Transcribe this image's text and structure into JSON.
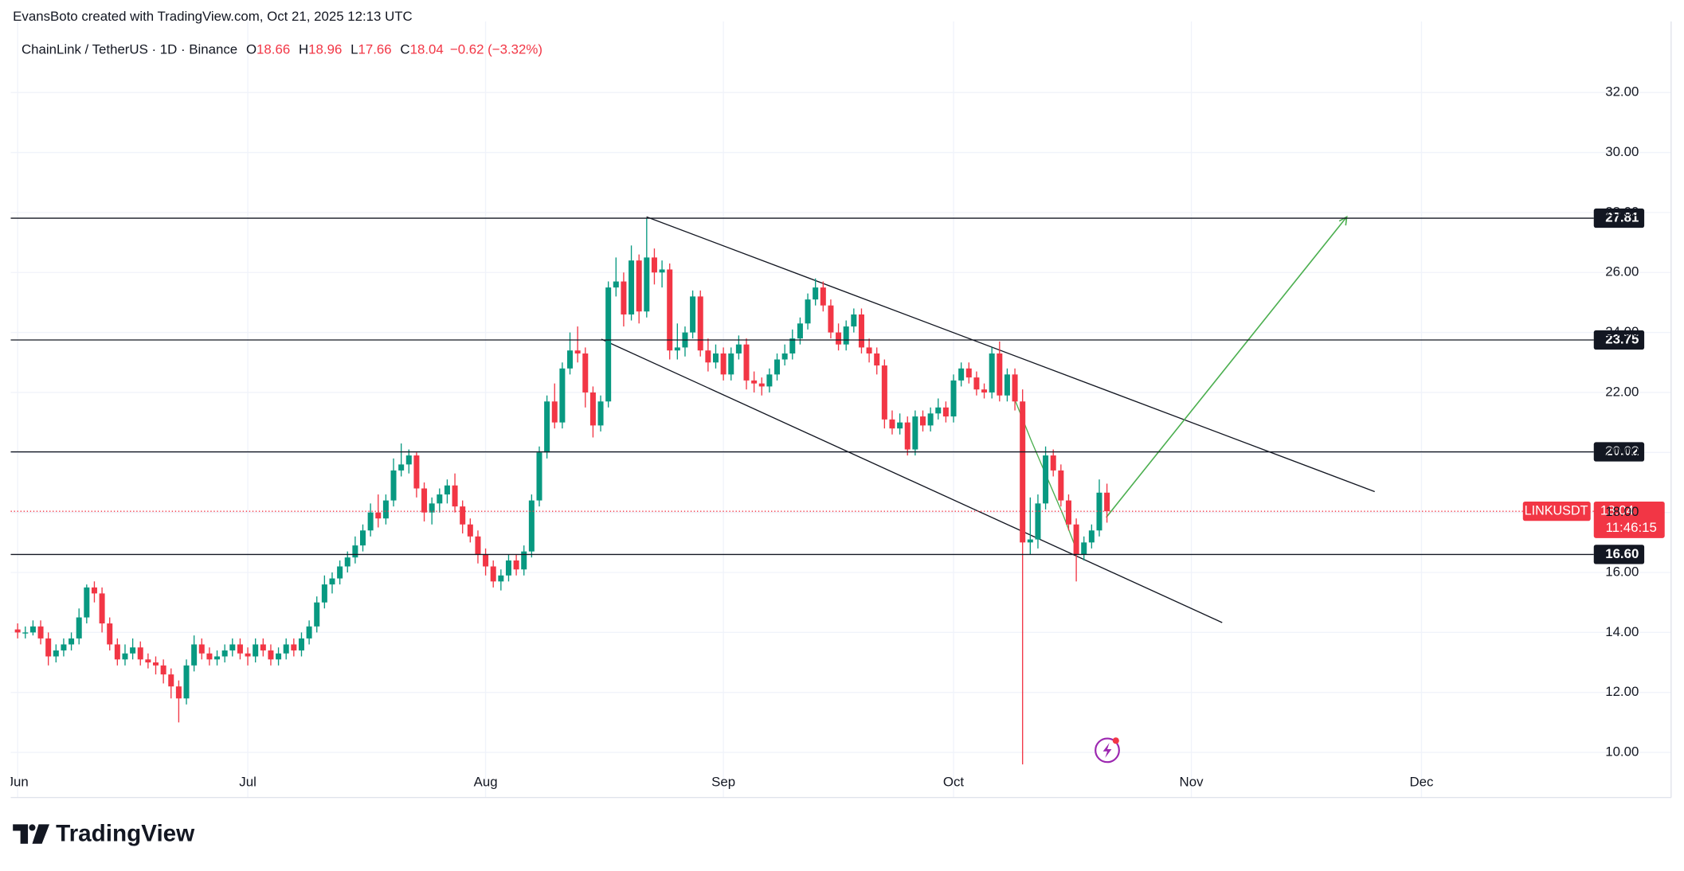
{
  "header": {
    "credit": "EvansBoto created with TradingView.com, Oct 21, 2025 12:13 UTC"
  },
  "chart_data": {
    "type": "candlestick",
    "title": "ChainLink / TetherUS · 1D · Binance",
    "ohlc_legend": [
      {
        "label": "O",
        "value": "18.66"
      },
      {
        "label": "H",
        "value": "18.96"
      },
      {
        "label": "L",
        "value": "17.66"
      },
      {
        "label": "C",
        "value": "18.04"
      }
    ],
    "change": "−0.62 (−3.32%)",
    "up_color": "#089981",
    "down_color": "#f23645",
    "candles": [
      [
        14.1,
        14.3,
        13.8,
        14.0
      ],
      [
        14.0,
        14.2,
        13.8,
        14.0
      ],
      [
        14.0,
        14.4,
        13.9,
        14.2
      ],
      [
        14.2,
        14.4,
        13.6,
        13.8
      ],
      [
        13.8,
        14.0,
        12.9,
        13.2
      ],
      [
        13.2,
        13.6,
        13.0,
        13.4
      ],
      [
        13.4,
        13.8,
        13.2,
        13.6
      ],
      [
        13.6,
        14.0,
        13.4,
        13.8
      ],
      [
        13.8,
        14.8,
        13.6,
        14.5
      ],
      [
        14.5,
        15.6,
        14.3,
        15.5
      ],
      [
        15.5,
        15.7,
        15.0,
        15.3
      ],
      [
        15.3,
        15.5,
        14.0,
        14.3
      ],
      [
        14.3,
        14.5,
        13.4,
        13.6
      ],
      [
        13.6,
        13.8,
        12.9,
        13.1
      ],
      [
        13.1,
        13.6,
        12.9,
        13.3
      ],
      [
        13.3,
        13.8,
        13.1,
        13.5
      ],
      [
        13.5,
        13.7,
        12.9,
        13.1
      ],
      [
        13.1,
        13.3,
        12.8,
        13.0
      ],
      [
        13.0,
        13.2,
        12.6,
        12.9
      ],
      [
        12.9,
        13.1,
        12.3,
        12.6
      ],
      [
        12.6,
        12.8,
        11.8,
        12.2
      ],
      [
        12.2,
        12.4,
        11.0,
        11.8
      ],
      [
        11.8,
        13.1,
        11.6,
        12.9
      ],
      [
        12.9,
        13.9,
        12.7,
        13.6
      ],
      [
        13.6,
        13.8,
        13.1,
        13.3
      ],
      [
        13.3,
        13.5,
        12.9,
        13.1
      ],
      [
        13.1,
        13.4,
        12.9,
        13.2
      ],
      [
        13.2,
        13.6,
        13.0,
        13.4
      ],
      [
        13.4,
        13.8,
        13.2,
        13.6
      ],
      [
        13.6,
        13.8,
        13.1,
        13.3
      ],
      [
        13.3,
        13.5,
        12.9,
        13.2
      ],
      [
        13.2,
        13.8,
        13.0,
        13.6
      ],
      [
        13.6,
        13.8,
        13.2,
        13.4
      ],
      [
        13.4,
        13.6,
        12.9,
        13.1
      ],
      [
        13.1,
        13.5,
        12.9,
        13.3
      ],
      [
        13.3,
        13.8,
        13.1,
        13.6
      ],
      [
        13.6,
        13.8,
        13.2,
        13.4
      ],
      [
        13.4,
        14.0,
        13.2,
        13.8
      ],
      [
        13.8,
        14.4,
        13.6,
        14.2
      ],
      [
        14.2,
        15.2,
        14.0,
        15.0
      ],
      [
        15.0,
        15.9,
        14.8,
        15.6
      ],
      [
        15.6,
        16.0,
        15.3,
        15.8
      ],
      [
        15.8,
        16.4,
        15.6,
        16.2
      ],
      [
        16.2,
        16.7,
        16.0,
        16.5
      ],
      [
        16.5,
        17.2,
        16.3,
        16.9
      ],
      [
        16.9,
        17.6,
        16.7,
        17.4
      ],
      [
        17.4,
        18.3,
        17.2,
        18.0
      ],
      [
        18.0,
        18.6,
        17.5,
        17.8
      ],
      [
        17.8,
        18.6,
        17.6,
        18.4
      ],
      [
        18.4,
        19.8,
        18.2,
        19.4
      ],
      [
        19.4,
        20.3,
        19.2,
        19.6
      ],
      [
        19.6,
        20.1,
        19.3,
        19.9
      ],
      [
        19.9,
        20.0,
        18.5,
        18.8
      ],
      [
        18.8,
        19.0,
        17.7,
        18.0
      ],
      [
        18.0,
        18.5,
        17.6,
        18.3
      ],
      [
        18.3,
        18.8,
        18.0,
        18.6
      ],
      [
        18.6,
        19.1,
        18.3,
        18.9
      ],
      [
        18.9,
        19.3,
        18.0,
        18.2
      ],
      [
        18.2,
        18.4,
        17.3,
        17.6
      ],
      [
        17.6,
        17.8,
        17.0,
        17.2
      ],
      [
        17.2,
        17.4,
        16.3,
        16.6
      ],
      [
        16.6,
        16.8,
        15.9,
        16.2
      ],
      [
        16.2,
        16.4,
        15.5,
        15.7
      ],
      [
        15.7,
        16.1,
        15.4,
        15.9
      ],
      [
        15.9,
        16.6,
        15.7,
        16.4
      ],
      [
        16.4,
        16.6,
        15.9,
        16.1
      ],
      [
        16.1,
        16.9,
        15.9,
        16.7
      ],
      [
        16.7,
        18.6,
        16.5,
        18.4
      ],
      [
        18.4,
        20.2,
        18.2,
        20.0
      ],
      [
        20.0,
        21.9,
        19.8,
        21.7
      ],
      [
        21.7,
        22.3,
        20.8,
        21.0
      ],
      [
        21.0,
        23.0,
        20.8,
        22.8
      ],
      [
        22.8,
        24.0,
        22.6,
        23.4
      ],
      [
        23.4,
        24.2,
        23.0,
        23.3
      ],
      [
        23.3,
        23.5,
        21.5,
        22.0
      ],
      [
        22.0,
        22.2,
        20.5,
        20.9
      ],
      [
        20.9,
        21.9,
        20.7,
        21.7
      ],
      [
        21.7,
        25.7,
        21.5,
        25.5
      ],
      [
        25.5,
        26.5,
        25.2,
        25.7
      ],
      [
        25.7,
        26.0,
        24.2,
        24.6
      ],
      [
        24.6,
        26.9,
        24.4,
        26.4
      ],
      [
        26.4,
        26.6,
        24.3,
        24.7
      ],
      [
        24.7,
        27.8,
        24.5,
        26.5
      ],
      [
        26.5,
        26.8,
        25.6,
        26.0
      ],
      [
        26.0,
        26.4,
        25.5,
        26.1
      ],
      [
        26.1,
        26.3,
        23.1,
        23.4
      ],
      [
        23.4,
        24.3,
        23.1,
        23.5
      ],
      [
        23.5,
        24.2,
        23.2,
        24.0
      ],
      [
        24.0,
        25.4,
        23.8,
        25.2
      ],
      [
        25.2,
        25.4,
        23.2,
        23.4
      ],
      [
        23.4,
        23.8,
        22.7,
        23.0
      ],
      [
        23.0,
        23.6,
        22.8,
        23.3
      ],
      [
        23.3,
        23.5,
        22.4,
        22.6
      ],
      [
        22.6,
        23.5,
        22.4,
        23.3
      ],
      [
        23.3,
        23.9,
        23.1,
        23.6
      ],
      [
        23.6,
        23.8,
        22.1,
        22.4
      ],
      [
        22.4,
        22.7,
        22.0,
        22.3
      ],
      [
        22.3,
        22.5,
        21.9,
        22.2
      ],
      [
        22.2,
        22.8,
        22.0,
        22.6
      ],
      [
        22.6,
        23.3,
        22.4,
        23.1
      ],
      [
        23.1,
        23.6,
        22.9,
        23.3
      ],
      [
        23.3,
        24.1,
        23.1,
        23.8
      ],
      [
        23.8,
        24.5,
        23.6,
        24.3
      ],
      [
        24.3,
        25.3,
        24.1,
        25.1
      ],
      [
        25.1,
        25.8,
        24.9,
        25.5
      ],
      [
        25.5,
        25.7,
        24.7,
        24.9
      ],
      [
        24.9,
        25.1,
        23.8,
        24.0
      ],
      [
        24.0,
        24.3,
        23.4,
        23.6
      ],
      [
        23.6,
        24.4,
        23.4,
        24.2
      ],
      [
        24.2,
        24.8,
        24.0,
        24.6
      ],
      [
        24.6,
        24.8,
        23.3,
        23.5
      ],
      [
        23.5,
        23.8,
        23.0,
        23.3
      ],
      [
        23.3,
        23.5,
        22.6,
        22.9
      ],
      [
        22.9,
        23.1,
        20.8,
        21.1
      ],
      [
        21.1,
        21.4,
        20.6,
        20.8
      ],
      [
        20.8,
        21.3,
        20.6,
        21.0
      ],
      [
        21.0,
        21.2,
        19.9,
        20.1
      ],
      [
        20.1,
        21.4,
        19.9,
        21.2
      ],
      [
        21.2,
        21.4,
        20.7,
        20.9
      ],
      [
        20.9,
        21.5,
        20.7,
        21.3
      ],
      [
        21.3,
        21.8,
        21.1,
        21.5
      ],
      [
        21.5,
        21.7,
        21.0,
        21.2
      ],
      [
        21.2,
        22.6,
        21.0,
        22.4
      ],
      [
        22.4,
        23.0,
        22.2,
        22.8
      ],
      [
        22.8,
        23.0,
        22.3,
        22.5
      ],
      [
        22.5,
        22.7,
        21.9,
        22.1
      ],
      [
        22.1,
        22.3,
        21.8,
        22.0
      ],
      [
        22.0,
        23.5,
        21.8,
        23.3
      ],
      [
        23.3,
        23.7,
        21.7,
        21.9
      ],
      [
        21.9,
        22.8,
        21.7,
        22.6
      ],
      [
        22.6,
        22.8,
        21.4,
        21.7
      ],
      [
        21.7,
        22.1,
        9.6,
        17.0
      ],
      [
        17.0,
        18.5,
        16.6,
        17.1
      ],
      [
        17.1,
        18.6,
        16.8,
        18.3
      ],
      [
        18.3,
        20.2,
        18.1,
        19.9
      ],
      [
        19.9,
        20.1,
        19.2,
        19.4
      ],
      [
        19.4,
        19.6,
        18.2,
        18.4
      ],
      [
        18.4,
        18.6,
        17.4,
        17.6
      ],
      [
        17.6,
        17.8,
        15.7,
        16.6
      ],
      [
        16.6,
        17.2,
        16.4,
        17.0
      ],
      [
        17.0,
        17.6,
        16.8,
        17.4
      ],
      [
        17.4,
        19.1,
        17.2,
        18.66
      ],
      [
        18.66,
        18.96,
        17.66,
        18.04
      ]
    ],
    "xlim": [
      -0.9,
      204.9
    ],
    "xticks": [
      {
        "value": 0,
        "label": "Jun"
      },
      {
        "value": 30,
        "label": "Jul"
      },
      {
        "value": 61,
        "label": "Aug"
      },
      {
        "value": 92,
        "label": "Sep"
      },
      {
        "value": 122,
        "label": "Oct"
      },
      {
        "value": 153,
        "label": "Nov"
      },
      {
        "value": 183,
        "label": "Dec"
      }
    ],
    "ylim": [
      9.57,
      34.01
    ],
    "yticks": [
      {
        "value": 10,
        "label": "10.00"
      },
      {
        "value": 12,
        "label": "12.00"
      },
      {
        "value": 14,
        "label": "14.00"
      },
      {
        "value": 16,
        "label": "16.00"
      },
      {
        "value": 18,
        "label": "18.00"
      },
      {
        "value": 20,
        "label": "20.00"
      },
      {
        "value": 22,
        "label": "22.00"
      },
      {
        "value": 24,
        "label": "24.00"
      },
      {
        "value": 26,
        "label": "26.00"
      },
      {
        "value": 28,
        "label": "28.00"
      },
      {
        "value": 30,
        "label": "30.00"
      },
      {
        "value": 32,
        "label": "32.00"
      }
    ],
    "grid": true,
    "levels": [
      27.81,
      23.75,
      20.02,
      {
        "value": 16.6,
        "label": "16.60"
      }
    ],
    "last_price": 18.04,
    "symbol_label": "LINKUSDT",
    "countdown": "11:46:15"
  },
  "footer": {
    "brand": "TradingView"
  }
}
